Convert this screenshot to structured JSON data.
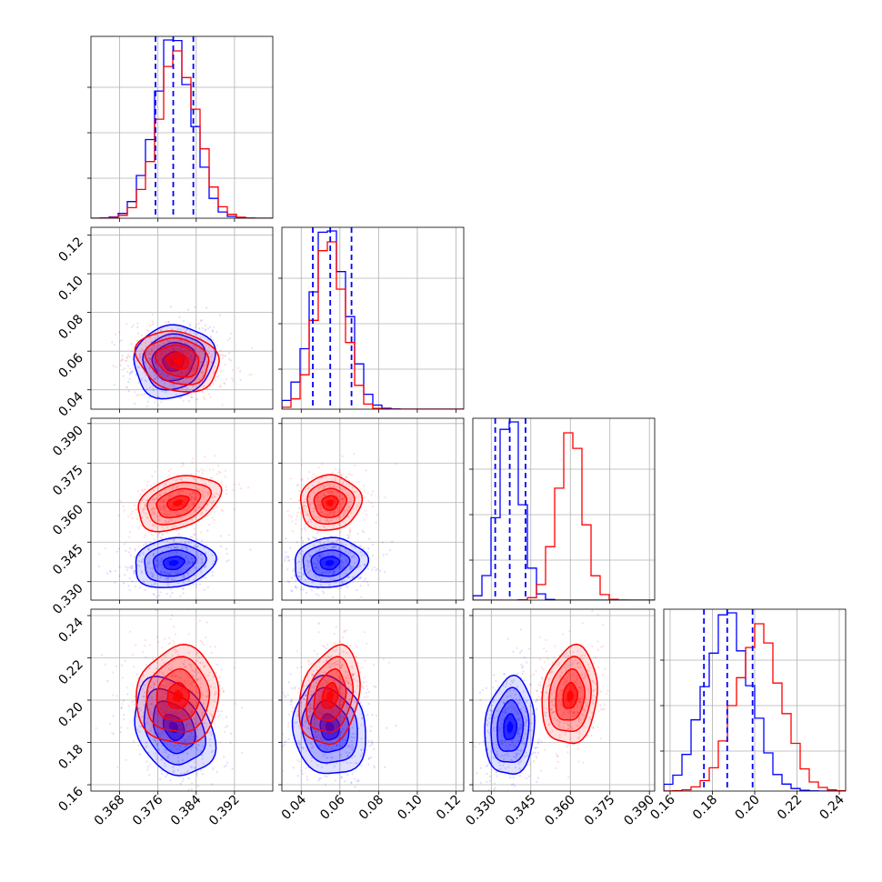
{
  "chart_data": {
    "type": "corner",
    "grid": true,
    "colors": {
      "set_a": "#0000ff",
      "set_b": "#ff0000"
    },
    "params": [
      {
        "range": [
          0.362,
          0.4
        ],
        "ticks": [
          "0.368",
          "0.376",
          "0.384",
          "0.392"
        ],
        "tick_values": [
          0.368,
          0.376,
          0.384,
          0.392
        ]
      },
      {
        "range": [
          0.03,
          0.124
        ],
        "ticks": [
          "0.04",
          "0.06",
          "0.08",
          "0.10",
          "0.12"
        ],
        "tick_values": [
          0.04,
          0.06,
          0.08,
          0.1,
          0.12
        ]
      },
      {
        "range": [
          0.323,
          0.392
        ],
        "ticks": [
          "0.330",
          "0.345",
          "0.360",
          "0.375",
          "0.390"
        ],
        "tick_values": [
          0.33,
          0.345,
          0.36,
          0.375,
          0.39
        ]
      },
      {
        "range": [
          0.157,
          0.243
        ],
        "ticks": [
          "0.16",
          "0.18",
          "0.20",
          "0.22",
          "0.24"
        ],
        "tick_values": [
          0.16,
          0.18,
          0.2,
          0.22,
          0.24
        ]
      }
    ],
    "series": [
      {
        "color": "#0000ff",
        "means": [
          0.3793,
          0.0547,
          0.3371,
          0.1872
        ],
        "sigmas": [
          0.004,
          0.009,
          0.0045,
          0.011
        ],
        "correlations": [
          [
            0,
            1,
            0.1
          ],
          [
            0,
            2,
            0.15
          ],
          [
            0,
            3,
            -0.3
          ],
          [
            1,
            2,
            0.1
          ],
          [
            1,
            3,
            -0.1
          ],
          [
            2,
            3,
            0.1
          ]
        ],
        "quantiles": [
          [
            0.3755,
            0.3792,
            0.3834
          ],
          [
            0.046,
            0.055,
            0.066
          ],
          [
            0.3315,
            0.337,
            0.343
          ],
          [
            0.176,
            0.187,
            0.199
          ]
        ],
        "hist_peak_y": 0.98
      },
      {
        "color": "#ff0000",
        "means": [
          0.3802,
          0.0549,
          0.3599,
          0.2019
        ],
        "sigmas": [
          0.0041,
          0.0075,
          0.005,
          0.011
        ],
        "correlations": [
          [
            0,
            1,
            -0.2
          ],
          [
            0,
            2,
            0.35
          ],
          [
            0,
            3,
            0.05
          ],
          [
            1,
            2,
            0.05
          ],
          [
            1,
            3,
            0.25
          ],
          [
            2,
            3,
            0.15
          ]
        ],
        "hist_peak_y": 0.92
      }
    ]
  }
}
